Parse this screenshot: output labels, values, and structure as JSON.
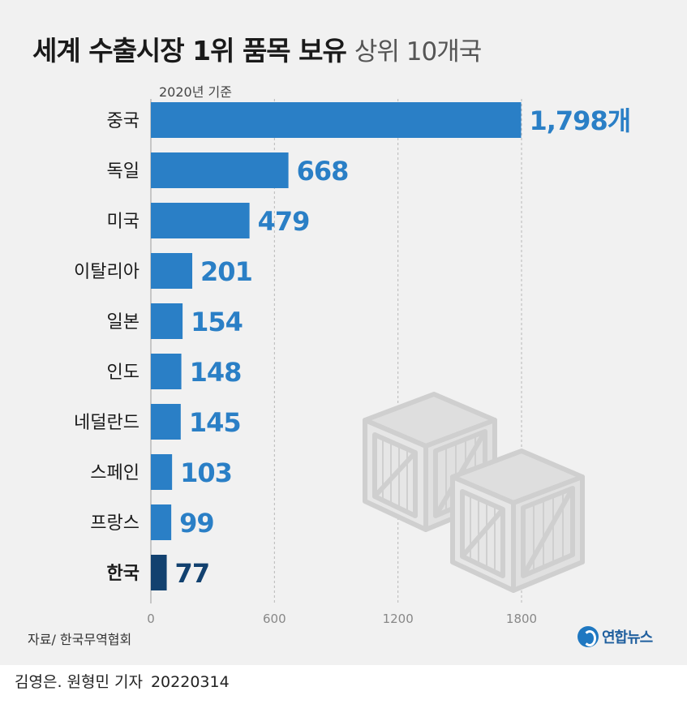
{
  "title": {
    "main": "세계 수출시장 1위 품목 보유",
    "sub": "상위 10개국"
  },
  "subtitle": "2020년 기준",
  "source": "자료/ 한국무역협회",
  "logo_text": "연합뉴스",
  "credit": {
    "authors": "김영은. 원형민 기자",
    "date": "20220314"
  },
  "colors": {
    "bar": "#2a7fc6",
    "highlight_bar": "#12416f",
    "value_label": "#2a7fc6",
    "highlight_label": "#12416f",
    "background": "#f1f1f1"
  },
  "icons": [
    "crate-icon",
    "crate-icon"
  ],
  "chart_data": {
    "type": "bar",
    "orientation": "horizontal",
    "categories": [
      "중국",
      "독일",
      "미국",
      "이탈리아",
      "일본",
      "인도",
      "네덜란드",
      "스페인",
      "프랑스",
      "한국"
    ],
    "values": [
      1798,
      668,
      479,
      201,
      154,
      148,
      145,
      103,
      99,
      77
    ],
    "value_labels": [
      "1,798개",
      "668",
      "479",
      "201",
      "154",
      "148",
      "145",
      "103",
      "99",
      "77"
    ],
    "highlight": "한국",
    "xticks": [
      0,
      600,
      1200,
      1800
    ],
    "xlim": [
      0,
      1800
    ],
    "grid": true,
    "title": "세계 수출시장 1위 품목 보유 상위 10개국"
  }
}
